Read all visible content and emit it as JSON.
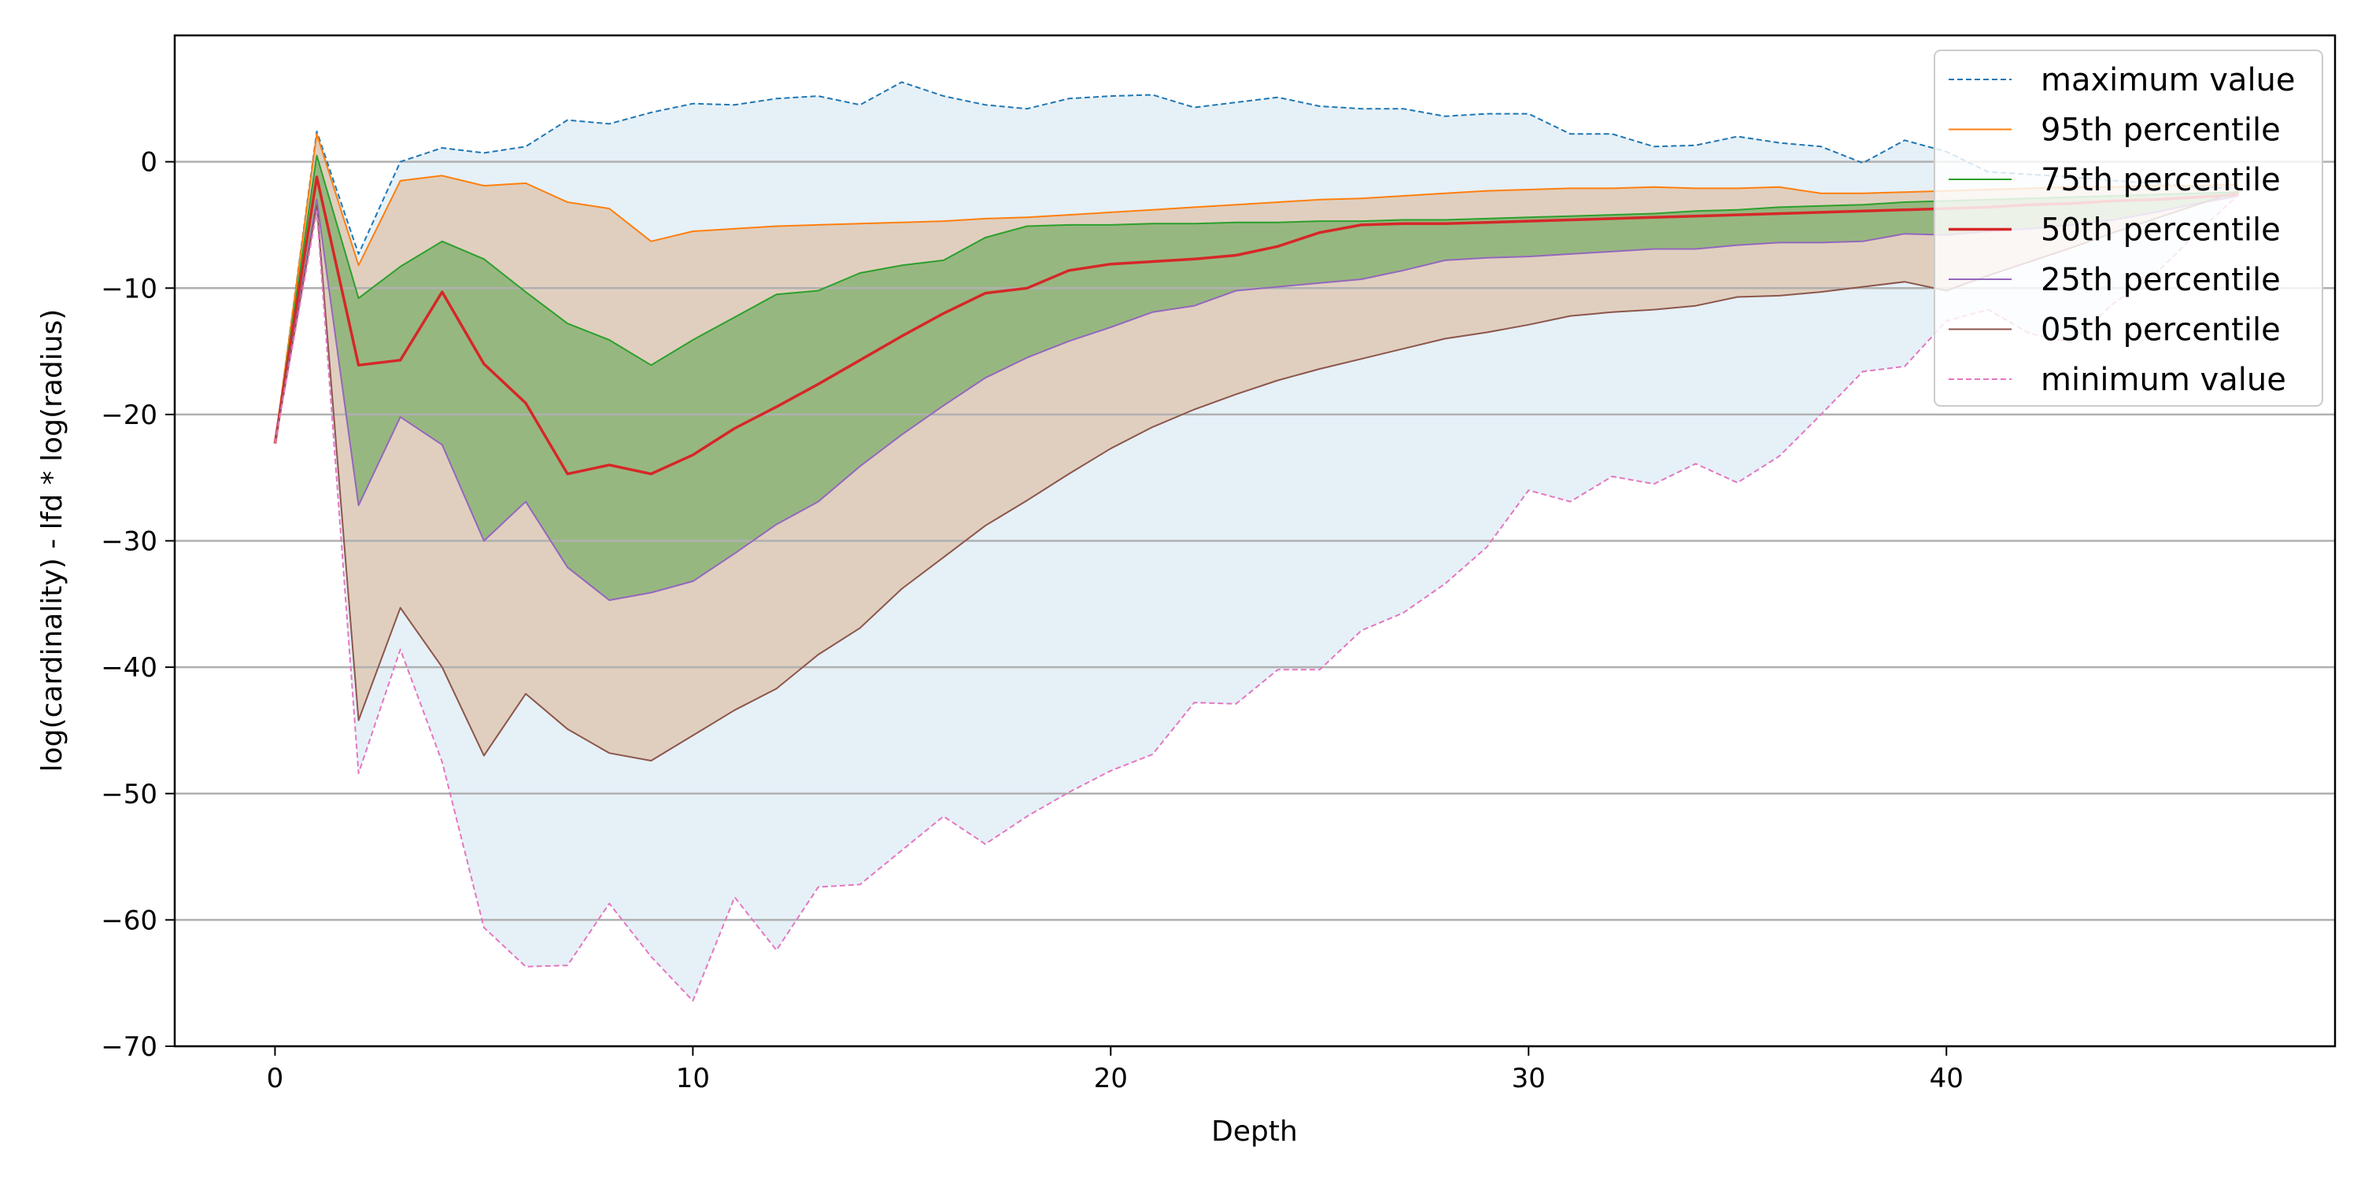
{
  "chart_data": {
    "type": "line",
    "xlabel": "Depth",
    "ylabel": "log(cardinality) - lfd * log(radius)",
    "xlim": [
      -2.4,
      49.3
    ],
    "ylim": [
      -70,
      10
    ],
    "xticks": [
      0,
      10,
      20,
      30,
      40
    ],
    "yticks": [
      0,
      -10,
      -20,
      -30,
      -40,
      -50,
      -60,
      -70
    ],
    "grid": "horizontal",
    "legend_placement": "top-right",
    "x": [
      0,
      1,
      2,
      3,
      4,
      5,
      6,
      7,
      8,
      9,
      10,
      11,
      12,
      13,
      14,
      15,
      16,
      17,
      18,
      19,
      20,
      21,
      22,
      23,
      24,
      25,
      26,
      27,
      28,
      29,
      30,
      31,
      32,
      33,
      34,
      35,
      36,
      37,
      38,
      39,
      40,
      41,
      42,
      43,
      44,
      45,
      46,
      47
    ],
    "bands": [
      {
        "lower": "minimum value",
        "upper": "maximum value",
        "color": "#1f77b4",
        "opacity": 0.11
      },
      {
        "lower": "05th percentile",
        "upper": "95th percentile",
        "color": "#d9a77a",
        "opacity": 0.45
      },
      {
        "lower": "25th percentile",
        "upper": "75th percentile",
        "color": "#3f9a32",
        "opacity": 0.45
      }
    ],
    "series": [
      {
        "name": "maximum value",
        "color": "#1f77b4",
        "style": "dashed",
        "width": 2,
        "values": [
          -22.3,
          2.4,
          -7.3,
          0.0,
          1.1,
          0.7,
          1.2,
          3.3,
          3.0,
          3.9,
          4.6,
          4.5,
          5.0,
          5.2,
          4.5,
          6.3,
          5.2,
          4.5,
          4.2,
          5.0,
          5.2,
          5.3,
          4.3,
          4.7,
          5.1,
          4.4,
          4.2,
          4.2,
          3.6,
          3.8,
          3.8,
          2.2,
          2.2,
          1.2,
          1.3,
          2.0,
          1.5,
          1.2,
          -0.1,
          1.7,
          0.8,
          -0.8,
          -1.0,
          -1.2,
          -1.5,
          -1.7,
          -2.0,
          -2.1
        ]
      },
      {
        "name": "95th percentile",
        "color": "#ff7f0e",
        "style": "solid",
        "width": 2,
        "values": [
          -22.3,
          2.2,
          -8.2,
          -1.5,
          -1.1,
          -1.9,
          -1.7,
          -3.2,
          -3.7,
          -6.3,
          -5.5,
          -5.3,
          -5.1,
          -5.0,
          -4.9,
          -4.8,
          -4.7,
          -4.5,
          -4.4,
          -4.2,
          -4.0,
          -3.8,
          -3.6,
          -3.4,
          -3.2,
          -3.0,
          -2.9,
          -2.7,
          -2.5,
          -2.3,
          -2.2,
          -2.1,
          -2.1,
          -2.0,
          -2.1,
          -2.1,
          -2.0,
          -2.5,
          -2.5,
          -2.4,
          -2.3,
          -2.2,
          -2.1,
          -2.0,
          -2.0,
          -1.9,
          -1.9,
          -1.8
        ]
      },
      {
        "name": "75th percentile",
        "color": "#2ca02c",
        "style": "solid",
        "width": 2,
        "values": [
          -22.3,
          0.5,
          -10.8,
          -8.3,
          -6.3,
          -7.7,
          -10.3,
          -12.8,
          -14.1,
          -16.1,
          -14.1,
          -12.3,
          -10.5,
          -10.2,
          -8.8,
          -8.2,
          -7.8,
          -6.0,
          -5.1,
          -5.0,
          -5.0,
          -4.9,
          -4.9,
          -4.8,
          -4.8,
          -4.7,
          -4.7,
          -4.6,
          -4.6,
          -4.5,
          -4.4,
          -4.3,
          -4.2,
          -4.1,
          -3.9,
          -3.8,
          -3.6,
          -3.5,
          -3.4,
          -3.2,
          -3.1,
          -3.0,
          -2.9,
          -2.8,
          -2.7,
          -2.6,
          -2.5,
          -2.4
        ]
      },
      {
        "name": "50th percentile",
        "color": "#d62728",
        "style": "solid",
        "width": 3.5,
        "values": [
          -22.3,
          -1.2,
          -16.1,
          -15.7,
          -10.3,
          -16.0,
          -19.1,
          -24.7,
          -24.0,
          -24.7,
          -23.2,
          -21.1,
          -19.4,
          -17.6,
          -15.7,
          -13.8,
          -12.0,
          -10.4,
          -10.0,
          -8.6,
          -8.1,
          -7.9,
          -7.7,
          -7.4,
          -6.7,
          -5.6,
          -5.0,
          -4.9,
          -4.9,
          -4.8,
          -4.7,
          -4.6,
          -4.5,
          -4.4,
          -4.3,
          -4.2,
          -4.1,
          -4.0,
          -3.9,
          -3.8,
          -3.7,
          -3.6,
          -3.4,
          -3.3,
          -3.1,
          -3.0,
          -2.8,
          -2.6
        ]
      },
      {
        "name": "25th percentile",
        "color": "#9467bd",
        "style": "solid",
        "width": 2,
        "values": [
          -22.3,
          -3.0,
          -27.2,
          -20.2,
          -22.4,
          -30.0,
          -26.9,
          -32.1,
          -34.7,
          -34.1,
          -33.2,
          -31.0,
          -28.7,
          -26.9,
          -24.1,
          -21.6,
          -19.3,
          -17.1,
          -15.5,
          -14.2,
          -13.1,
          -11.9,
          -11.4,
          -10.2,
          -9.9,
          -9.6,
          -9.3,
          -8.6,
          -7.8,
          -7.6,
          -7.5,
          -7.3,
          -7.1,
          -6.9,
          -6.9,
          -6.6,
          -6.4,
          -6.4,
          -6.3,
          -5.7,
          -5.8,
          -5.5,
          -5.3,
          -5.0,
          -4.6,
          -4.0,
          -3.3,
          -2.7
        ]
      },
      {
        "name": "05th percentile",
        "color": "#8c564b",
        "style": "solid",
        "width": 2,
        "values": [
          -22.3,
          -3.5,
          -44.2,
          -35.3,
          -40.0,
          -47.0,
          -42.1,
          -44.9,
          -46.8,
          -47.4,
          -45.4,
          -43.4,
          -41.7,
          -39.0,
          -36.9,
          -33.8,
          -31.3,
          -28.8,
          -26.8,
          -24.7,
          -22.7,
          -21.0,
          -19.6,
          -18.4,
          -17.3,
          -16.4,
          -15.6,
          -14.8,
          -14.0,
          -13.5,
          -12.9,
          -12.2,
          -11.9,
          -11.7,
          -11.4,
          -10.7,
          -10.6,
          -10.3,
          -9.9,
          -9.5,
          -10.2,
          -9.0,
          -7.9,
          -6.8,
          -5.6,
          -4.5,
          -3.4,
          -2.3
        ]
      },
      {
        "name": "minimum value",
        "color": "#e377c2",
        "style": "dashed",
        "width": 2,
        "values": [
          -22.3,
          -3.9,
          -48.4,
          -38.6,
          -47.5,
          -60.6,
          -63.7,
          -63.6,
          -58.7,
          -62.9,
          -66.4,
          -58.2,
          -62.4,
          -57.4,
          -57.2,
          -54.5,
          -51.8,
          -54.0,
          -51.8,
          -49.9,
          -48.2,
          -46.9,
          -42.8,
          -42.9,
          -40.2,
          -40.2,
          -37.1,
          -35.7,
          -33.4,
          -30.5,
          -26.0,
          -26.9,
          -24.9,
          -25.5,
          -23.9,
          -25.4,
          -23.3,
          -20.0,
          -16.6,
          -16.2,
          -12.6,
          -11.7,
          -13.6,
          -14.3,
          -11.2,
          -8.9,
          -5.6,
          -2.6
        ]
      }
    ]
  }
}
